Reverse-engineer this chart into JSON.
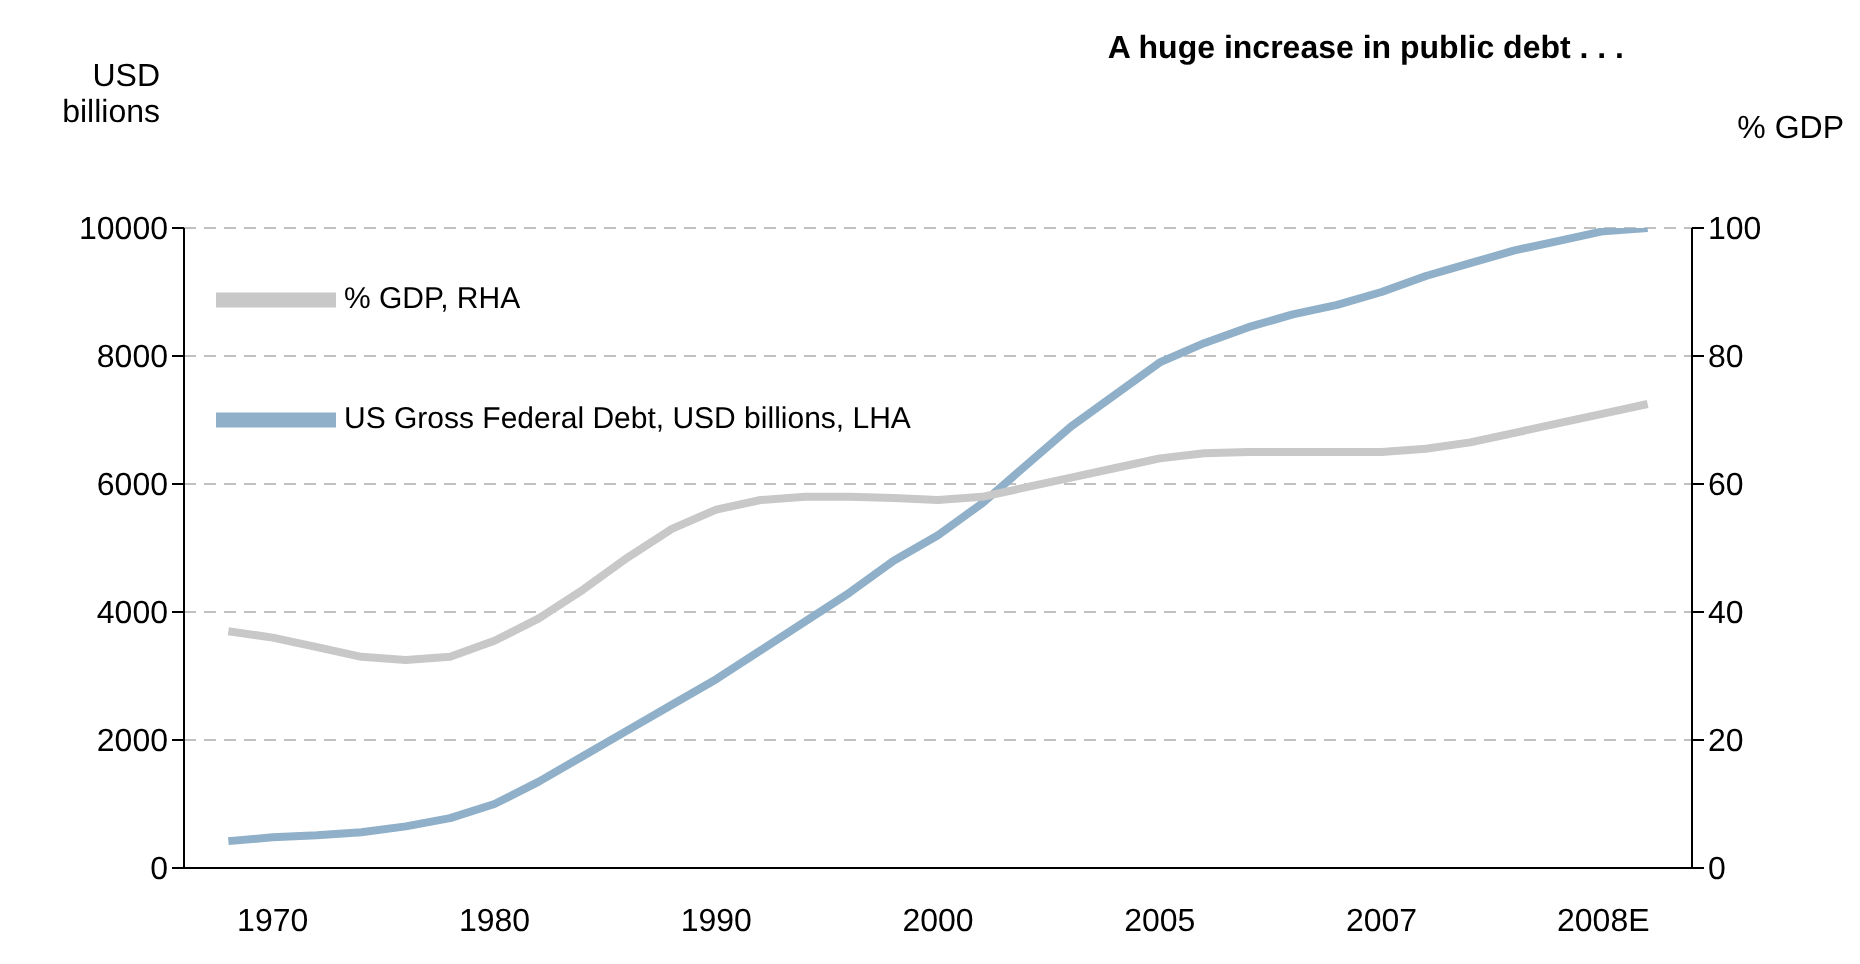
{
  "chart_data": {
    "type": "line",
    "title": "A huge increase in public debt . . .",
    "ylabel": "USD billions",
    "y2label": "% GDP",
    "categories": [
      null,
      null,
      "1970",
      null,
      null,
      null,
      null,
      "1980",
      null,
      null,
      null,
      null,
      "1990",
      null,
      null,
      null,
      null,
      "2000",
      null,
      null,
      null,
      null,
      "2005",
      null,
      null,
      null,
      null,
      "2007",
      null,
      null,
      null,
      null,
      "2008E",
      null,
      null
    ],
    "series": [
      {
        "name": "US Gross Federal Debt, USD billions, LHA",
        "color": "#8fb0c8",
        "values": [
          null,
          420,
          480,
          510,
          560,
          650,
          780,
          1000,
          1350,
          1750,
          2150,
          2550,
          2950,
          3400,
          3850,
          4300,
          4800,
          5200,
          5700,
          6300,
          6900,
          7400,
          7900,
          8200,
          8450,
          8650,
          8800,
          9000,
          9250,
          9450,
          9650,
          9800,
          9950,
          10000,
          null
        ]
      },
      {
        "name": "% GDP, RHA",
        "color": "#c8c8c8",
        "axis": "y2",
        "values": [
          null,
          37,
          36,
          34.5,
          33,
          32.5,
          33,
          35.5,
          39,
          43.5,
          48.5,
          53,
          56,
          57.5,
          58,
          58,
          57.8,
          57.5,
          58,
          59.5,
          61,
          62.5,
          64,
          64.8,
          65,
          65,
          65,
          65,
          65.5,
          66.5,
          68,
          69.5,
          71,
          72.5,
          null
        ]
      }
    ],
    "ylim": [
      0,
      10000
    ],
    "yticks": [
      0,
      2000,
      4000,
      6000,
      8000,
      10000
    ],
    "y2lim": [
      0,
      100
    ],
    "y2ticks": [
      0,
      20,
      40,
      60,
      80,
      100
    ],
    "grid": "y",
    "legend": "top left",
    "line_style": "solid",
    "marker": "none"
  }
}
